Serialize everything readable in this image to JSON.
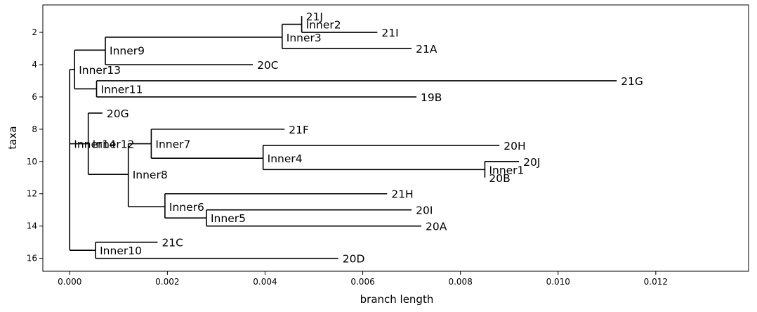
{
  "chart_data": {
    "type": "tree",
    "xlabel": "branch length",
    "ylabel": "taxa",
    "xlim": [
      -0.00055,
      0.0139
    ],
    "ylim": [
      16.8,
      0.3
    ],
    "x_ticks": [
      "0.000",
      "0.002",
      "0.004",
      "0.006",
      "0.008",
      "0.010",
      "0.012"
    ],
    "x_tick_values": [
      0,
      0.002,
      0.004,
      0.006,
      0.008,
      0.01,
      0.012
    ],
    "y_ticks": [
      "2",
      "4",
      "6",
      "8",
      "10",
      "12",
      "14",
      "16"
    ],
    "y_tick_values": [
      2,
      4,
      6,
      8,
      10,
      12,
      14,
      16
    ],
    "nodes": [
      {
        "name": "Inner14",
        "x": 0.0,
        "y": 8.9,
        "parent": null
      },
      {
        "name": "Inner13",
        "x": 0.0001,
        "y": 4.3,
        "parent": "Inner14"
      },
      {
        "name": "Inner9",
        "x": 0.00073,
        "y": 3.1,
        "parent": "Inner13"
      },
      {
        "name": "Inner3",
        "x": 0.00435,
        "y": 2.3,
        "parent": "Inner9"
      },
      {
        "name": "Inner2",
        "x": 0.00475,
        "y": 1.5,
        "parent": "Inner3"
      },
      {
        "name": "21J",
        "x": 0.00475,
        "y": 1.0,
        "parent": "Inner2",
        "leaf": true
      },
      {
        "name": "21I",
        "x": 0.0063,
        "y": 2.0,
        "parent": "Inner2",
        "leaf": true
      },
      {
        "name": "21A",
        "x": 0.007,
        "y": 3.0,
        "parent": "Inner3",
        "leaf": true
      },
      {
        "name": "20C",
        "x": 0.00375,
        "y": 4.0,
        "parent": "Inner9",
        "leaf": true
      },
      {
        "name": "Inner11",
        "x": 0.00055,
        "y": 5.5,
        "parent": "Inner13"
      },
      {
        "name": "21G",
        "x": 0.0112,
        "y": 5.0,
        "parent": "Inner11",
        "leaf": true
      },
      {
        "name": "19B",
        "x": 0.0071,
        "y": 6.0,
        "parent": "Inner11",
        "leaf": true
      },
      {
        "name": "Inner12",
        "x": 0.00038,
        "y": 8.9,
        "parent": "Inner14"
      },
      {
        "name": "20G",
        "x": 0.00067,
        "y": 7.0,
        "parent": "Inner12",
        "leaf": true
      },
      {
        "name": "Inner8",
        "x": 0.0012,
        "y": 10.8,
        "parent": "Inner12"
      },
      {
        "name": "Inner7",
        "x": 0.00167,
        "y": 8.9,
        "parent": "Inner8"
      },
      {
        "name": "21F",
        "x": 0.0044,
        "y": 8.0,
        "parent": "Inner7",
        "leaf": true
      },
      {
        "name": "Inner4",
        "x": 0.00396,
        "y": 9.8,
        "parent": "Inner7"
      },
      {
        "name": "20H",
        "x": 0.0088,
        "y": 9.0,
        "parent": "Inner4",
        "leaf": true
      },
      {
        "name": "Inner1",
        "x": 0.0085,
        "y": 10.5,
        "parent": "Inner4"
      },
      {
        "name": "20J",
        "x": 0.0092,
        "y": 10.0,
        "parent": "Inner1",
        "leaf": true
      },
      {
        "name": "20B",
        "x": 0.0085,
        "y": 11.0,
        "parent": "Inner1",
        "leaf": true
      },
      {
        "name": "Inner6",
        "x": 0.00195,
        "y": 12.8,
        "parent": "Inner8"
      },
      {
        "name": "21H",
        "x": 0.0065,
        "y": 12.0,
        "parent": "Inner6",
        "leaf": true
      },
      {
        "name": "Inner5",
        "x": 0.0028,
        "y": 13.5,
        "parent": "Inner6"
      },
      {
        "name": "20I",
        "x": 0.007,
        "y": 13.0,
        "parent": "Inner5",
        "leaf": true
      },
      {
        "name": "20A",
        "x": 0.0072,
        "y": 14.0,
        "parent": "Inner5",
        "leaf": true
      },
      {
        "name": "Inner10",
        "x": 0.00053,
        "y": 15.5,
        "parent": "Inner14"
      },
      {
        "name": "21C",
        "x": 0.0018,
        "y": 15.0,
        "parent": "Inner10",
        "leaf": true
      },
      {
        "name": "20D",
        "x": 0.0055,
        "y": 16.0,
        "parent": "Inner10",
        "leaf": true
      }
    ],
    "grid": false,
    "legend": "none"
  },
  "colors": {
    "line": "#000000",
    "frame": "#000000",
    "background": "#ffffff"
  }
}
